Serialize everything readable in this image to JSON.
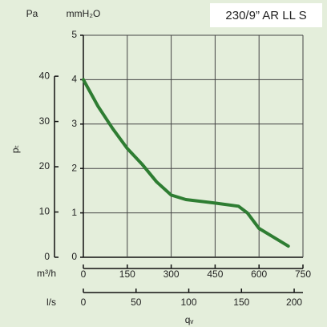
{
  "chart_data": {
    "type": "line",
    "title": "230/9” AR LL S",
    "x": [
      0,
      50,
      100,
      150,
      200,
      250,
      300,
      350,
      450,
      530,
      560,
      600,
      650,
      700
    ],
    "values": [
      4.0,
      3.4,
      2.9,
      2.45,
      2.1,
      1.7,
      1.4,
      1.3,
      1.22,
      1.15,
      1.0,
      0.65,
      0.45,
      0.25
    ],
    "color": "#2e7d32",
    "xlim": [
      0,
      750
    ],
    "xticks": [
      0,
      150,
      300,
      450,
      600,
      750
    ],
    "x_label": "m³/h",
    "x2lim": [
      0,
      208.33
    ],
    "x2ticks": [
      0,
      50,
      100,
      150,
      200
    ],
    "x2_label": "l/s",
    "x_axis_title": "qᵥ",
    "ylim": [
      0,
      5
    ],
    "yticks": [
      0,
      1,
      2,
      3,
      4,
      5
    ],
    "y_label": "mmH₂O",
    "y2lim": [
      0,
      49.05
    ],
    "y2ticks": [
      0,
      10,
      20,
      30,
      40
    ],
    "y2_label": "Pa",
    "y_axis_title": "pₜ",
    "grid": true
  }
}
